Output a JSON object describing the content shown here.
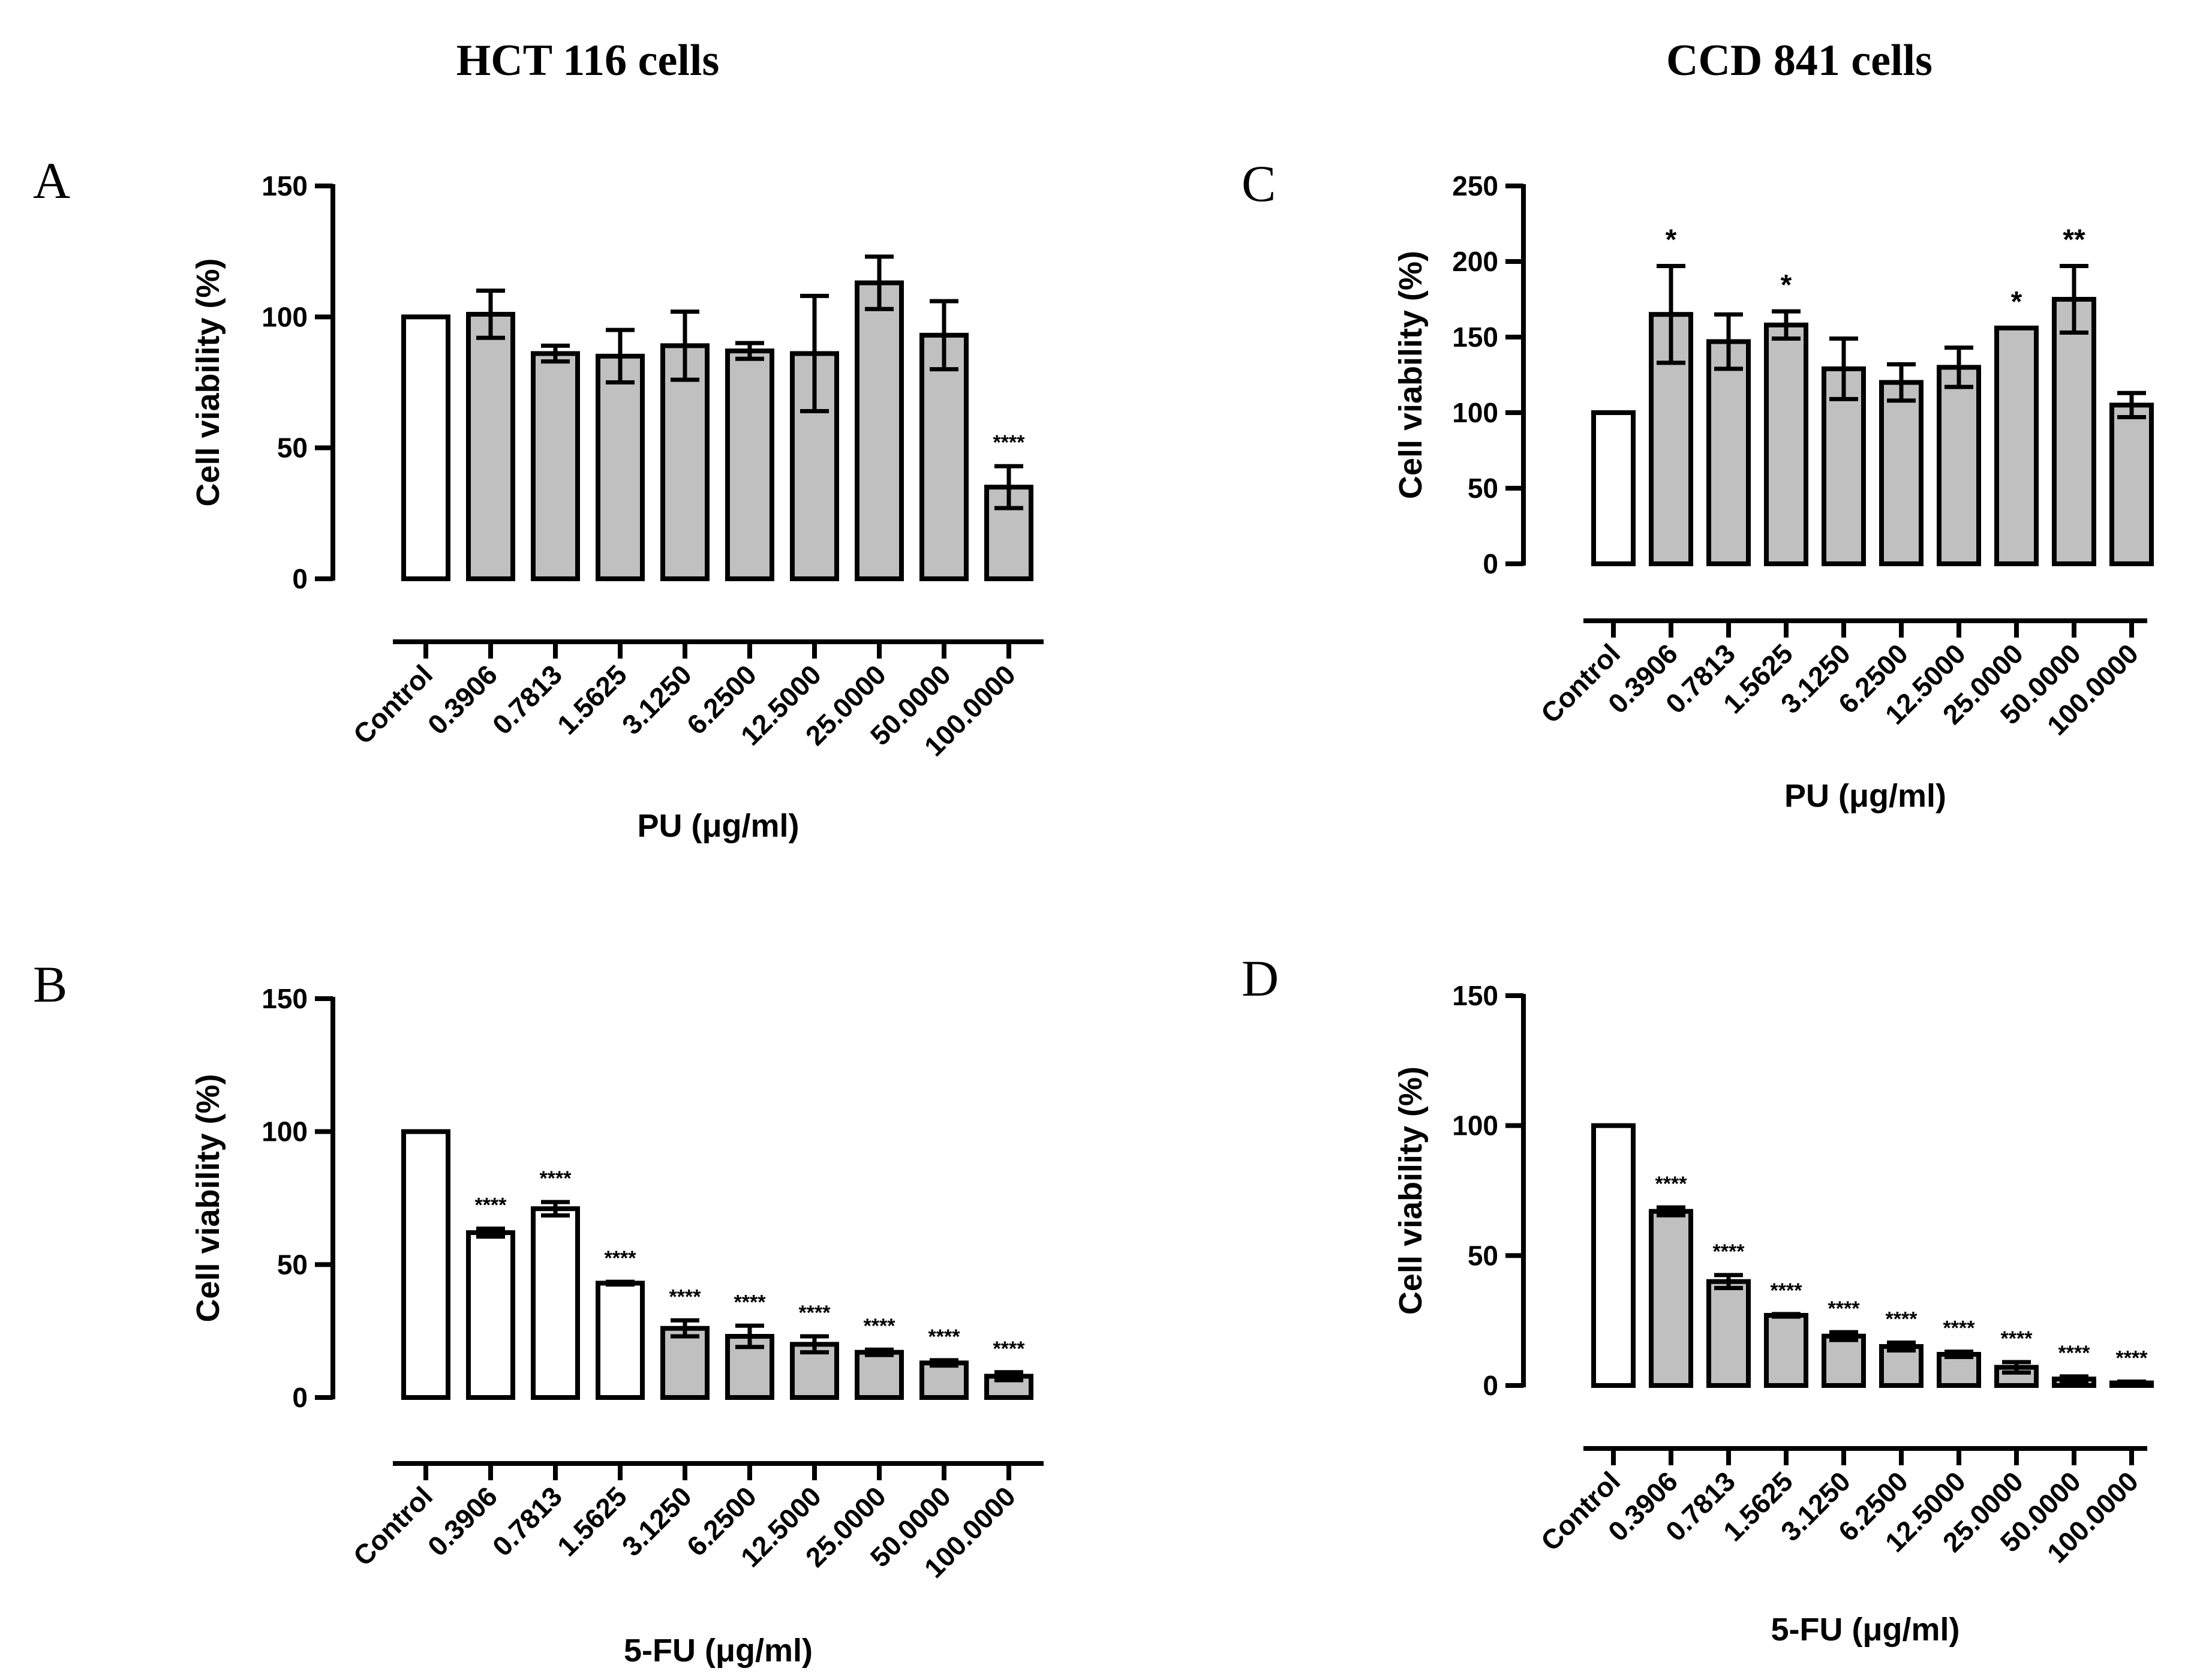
{
  "column_titles": [
    "HCT 116 cells",
    "CCD 841 cells"
  ],
  "chart_data": [
    {
      "panel": "A",
      "type": "bar",
      "ylabel": "Cell viability (%)",
      "xlabel": "PU (μg/ml)",
      "ylim": [
        0,
        150
      ],
      "yticks": [
        0,
        50,
        100,
        150
      ],
      "categories": [
        "Control",
        "0.3906",
        "0.7813",
        "1.5625",
        "3.1250",
        "6.2500",
        "12.5000",
        "25.0000",
        "50.0000",
        "100.0000"
      ],
      "values": [
        100,
        101,
        86,
        85,
        89,
        87,
        86,
        113,
        93,
        35
      ],
      "errors": [
        0,
        9,
        3,
        10,
        13,
        3,
        22,
        10,
        13,
        8
      ],
      "significance": [
        "",
        "",
        "",
        "",
        "",
        "",
        "",
        "",
        "",
        "****"
      ],
      "fill": [
        "#ffffff",
        "#c0c0c0",
        "#c0c0c0",
        "#c0c0c0",
        "#c0c0c0",
        "#c0c0c0",
        "#c0c0c0",
        "#c0c0c0",
        "#c0c0c0",
        "#c0c0c0"
      ]
    },
    {
      "panel": "B",
      "type": "bar",
      "ylabel": "Cell viability (%)",
      "xlabel": "5-FU (μg/ml)",
      "ylim": [
        0,
        150
      ],
      "yticks": [
        0,
        50,
        100,
        150
      ],
      "categories": [
        "Control",
        "0.3906",
        "0.7813",
        "1.5625",
        "3.1250",
        "6.2500",
        "12.5000",
        "25.0000",
        "50.0000",
        "100.0000"
      ],
      "values": [
        100,
        62,
        71,
        43,
        26,
        23,
        20,
        17,
        13,
        8
      ],
      "errors": [
        0,
        1.5,
        2.5,
        0.5,
        3,
        4,
        3,
        1,
        1,
        1.5
      ],
      "significance": [
        "",
        "****",
        "****",
        "****",
        "****",
        "****",
        "****",
        "****",
        "****",
        "****"
      ],
      "fill": [
        "#ffffff",
        "#ffffff",
        "#ffffff",
        "#ffffff",
        "#c0c0c0",
        "#c0c0c0",
        "#c0c0c0",
        "#c0c0c0",
        "#c0c0c0",
        "#c0c0c0"
      ]
    },
    {
      "panel": "C",
      "type": "bar",
      "ylabel": "Cell viability (%)",
      "xlabel": "PU (μg/ml)",
      "ylim": [
        0,
        250
      ],
      "yticks": [
        0,
        50,
        100,
        150,
        200,
        250
      ],
      "categories": [
        "Control",
        "0.3906",
        "0.7813",
        "1.5625",
        "3.1250",
        "6.2500",
        "12.5000",
        "25.0000",
        "50.0000",
        "100.0000"
      ],
      "values": [
        100,
        165,
        147,
        158,
        129,
        120,
        130,
        156,
        175,
        105
      ],
      "errors": [
        0,
        32,
        18,
        9,
        20,
        12,
        13,
        0,
        22,
        8
      ],
      "significance": [
        "",
        "*",
        "",
        "*",
        "",
        "",
        "",
        "*",
        "**",
        ""
      ],
      "fill": [
        "#ffffff",
        "#c0c0c0",
        "#c0c0c0",
        "#c0c0c0",
        "#c0c0c0",
        "#c0c0c0",
        "#c0c0c0",
        "#c0c0c0",
        "#c0c0c0",
        "#c0c0c0"
      ]
    },
    {
      "panel": "D",
      "type": "bar",
      "ylabel": "Cell viability (%)",
      "xlabel": "5-FU (μg/ml)",
      "ylim": [
        0,
        150
      ],
      "yticks": [
        0,
        50,
        100,
        150
      ],
      "categories": [
        "Control",
        "0.3906",
        "0.7813",
        "1.5625",
        "3.1250",
        "6.2500",
        "12.5000",
        "25.0000",
        "50.0000",
        "100.0000"
      ],
      "values": [
        100,
        67,
        40,
        27,
        19,
        15,
        12,
        7,
        2.5,
        1
      ],
      "errors": [
        0,
        1.5,
        2.5,
        0.5,
        1.5,
        1.5,
        1,
        2,
        1,
        0.5
      ],
      "significance": [
        "",
        "****",
        "****",
        "****",
        "****",
        "****",
        "****",
        "****",
        "****",
        "****"
      ],
      "fill": [
        "#ffffff",
        "#c0c0c0",
        "#c0c0c0",
        "#c0c0c0",
        "#c0c0c0",
        "#c0c0c0",
        "#c0c0c0",
        "#c0c0c0",
        "#c0c0c0",
        "#c0c0c0"
      ]
    }
  ]
}
